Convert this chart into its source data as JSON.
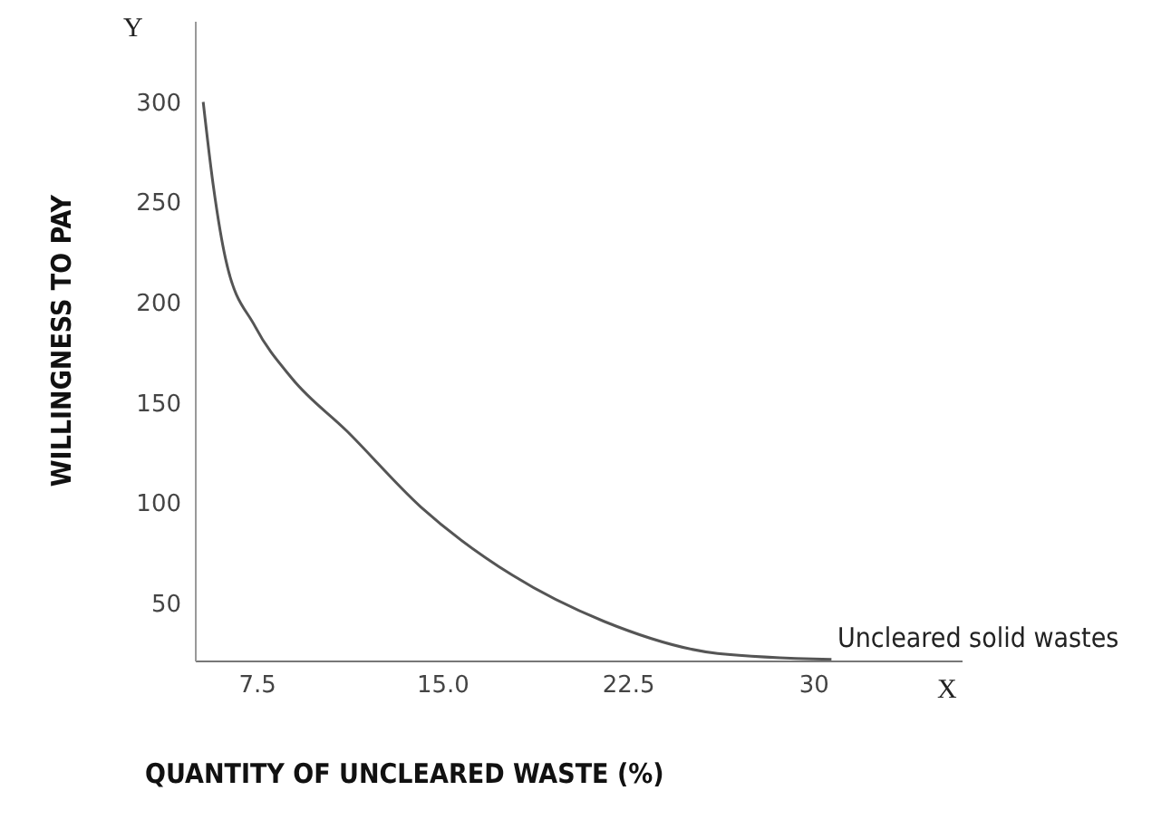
{
  "chart_data": {
    "type": "line",
    "xlabel": "QUANTITY OF UNCLEARED WASTE (%)",
    "ylabel": "WILLINGNESS TO PAY",
    "annotations": [
      "Y",
      "X",
      "Uncleared solid wastes"
    ],
    "x": [
      5.3,
      5.7,
      6.2,
      7.4,
      8.9,
      11.1,
      14.1,
      17.8,
      21.5,
      26.1,
      30.7
    ],
    "series": [
      {
        "color": "#555555",
        "values": [
          300,
          259,
          222,
          188,
          162,
          136,
          98,
          64,
          41,
          25,
          22
        ]
      }
    ],
    "xlim": [
      5,
      36
    ],
    "xticks": [
      {
        "value": 7.5,
        "label": "7.5"
      },
      {
        "value": 15,
        "label": "15.0"
      },
      {
        "value": 22.5,
        "label": "22.5"
      },
      {
        "value": 30,
        "label": "30"
      }
    ],
    "ylim": [
      21,
      340
    ],
    "yticks": [
      50,
      100,
      150,
      200,
      250,
      300
    ]
  }
}
